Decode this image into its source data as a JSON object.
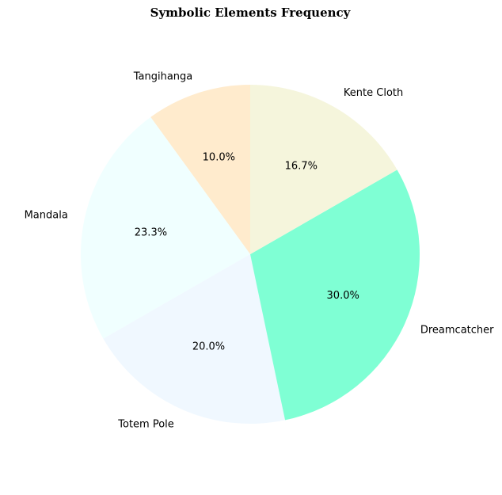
{
  "chart_data": {
    "type": "pie",
    "title": "Symbolic Elements Frequency",
    "start_angle_deg": 90,
    "direction": "counterclockwise",
    "slices": [
      {
        "label": "Tangihanga",
        "value": 10.0,
        "pct_text": "10.0%",
        "color": "#ffebcd"
      },
      {
        "label": "Mandala",
        "value": 23.3,
        "pct_text": "23.3%",
        "color": "#f0ffff"
      },
      {
        "label": "Totem Pole",
        "value": 20.0,
        "pct_text": "20.0%",
        "color": "#f0f8ff"
      },
      {
        "label": "Dreamcatcher",
        "value": 30.0,
        "pct_text": "30.0%",
        "color": "#7fffd4"
      },
      {
        "label": "Kente Cloth",
        "value": 16.7,
        "pct_text": "16.7%",
        "color": "#f5f5dc"
      }
    ]
  }
}
